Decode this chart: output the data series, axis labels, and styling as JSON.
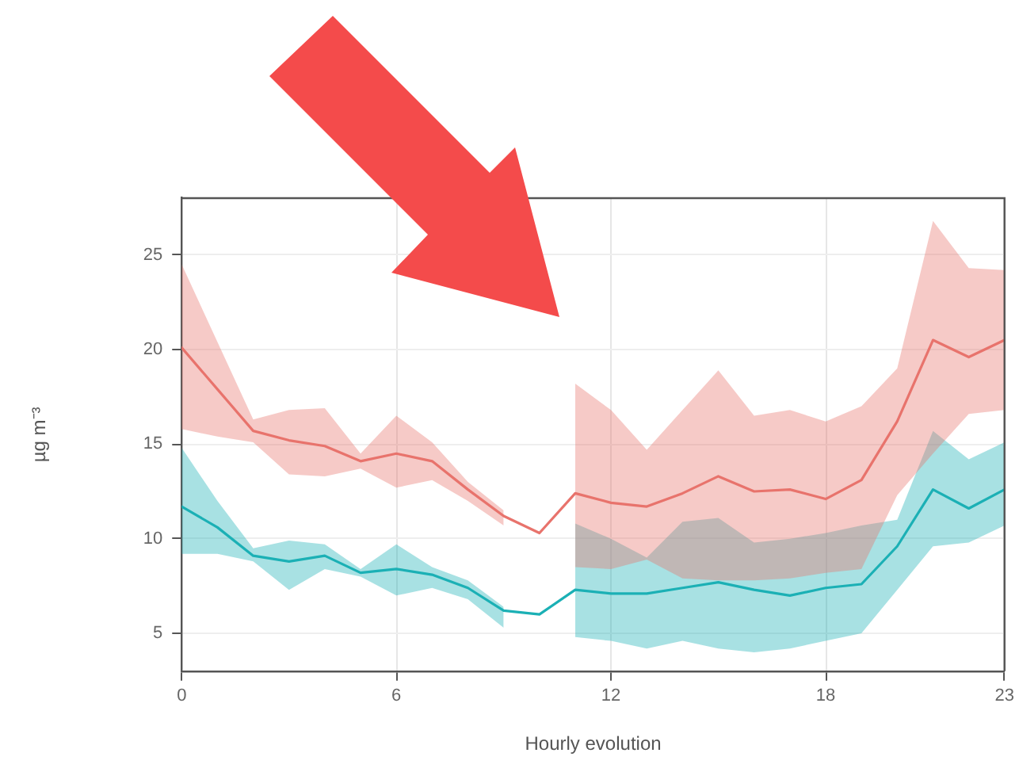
{
  "chart_data": {
    "type": "line",
    "xlabel": "Hourly evolution",
    "ylabel": "µg m⁻³",
    "x": [
      0,
      1,
      2,
      3,
      4,
      5,
      6,
      7,
      8,
      9,
      10,
      11,
      12,
      13,
      14,
      15,
      16,
      17,
      18,
      19,
      20,
      21,
      22,
      23
    ],
    "xlim": [
      0,
      23
    ],
    "xticks": [
      0,
      6,
      12,
      18,
      23
    ],
    "ylim": [
      3,
      28
    ],
    "yticks": [
      5,
      10,
      15,
      20,
      25
    ],
    "grid": true,
    "legend": false,
    "marker": "none",
    "line_style": "solid",
    "series": [
      {
        "color": "#e8736c",
        "values": [
          20.1,
          17.9,
          15.7,
          15.2,
          14.9,
          14.1,
          14.5,
          14.1,
          12.6,
          11.2,
          10.3,
          12.4,
          11.9,
          11.7,
          12.4,
          13.3,
          12.5,
          12.6,
          12.1,
          13.1,
          16.2,
          20.5,
          19.6,
          20.5
        ],
        "lower": [
          15.8,
          15.4,
          15.1,
          13.4,
          13.3,
          13.7,
          12.7,
          13.1,
          12.0,
          10.7,
          null,
          8.5,
          8.4,
          8.9,
          7.9,
          7.8,
          7.8,
          7.9,
          8.2,
          8.4,
          12.3,
          14.5,
          16.6,
          16.8
        ],
        "upper": [
          24.5,
          20.4,
          16.3,
          16.8,
          16.9,
          14.5,
          16.5,
          15.1,
          13.0,
          11.5,
          null,
          18.2,
          16.8,
          14.7,
          16.8,
          18.9,
          16.5,
          16.8,
          16.2,
          17.0,
          19.0,
          26.8,
          24.3,
          24.2
        ]
      },
      {
        "color": "#1bb0b5",
        "values": [
          11.7,
          10.6,
          9.1,
          8.8,
          9.1,
          8.2,
          8.4,
          8.1,
          7.4,
          6.2,
          6.0,
          7.3,
          7.1,
          7.1,
          7.4,
          7.7,
          7.3,
          7.0,
          7.4,
          7.6,
          9.6,
          12.6,
          11.6,
          12.6
        ],
        "lower": [
          9.2,
          9.2,
          8.8,
          7.3,
          8.4,
          8.0,
          7.0,
          7.4,
          6.8,
          5.3,
          null,
          4.8,
          4.6,
          4.2,
          4.6,
          4.2,
          4.0,
          4.2,
          4.6,
          5.0,
          7.3,
          9.6,
          9.8,
          10.7
        ],
        "upper": [
          14.8,
          12.0,
          9.5,
          9.9,
          9.7,
          8.4,
          9.7,
          8.5,
          7.8,
          6.4,
          null,
          10.8,
          10.0,
          9.0,
          10.9,
          11.1,
          9.8,
          10.0,
          10.3,
          10.7,
          11.0,
          15.7,
          14.2,
          15.1
        ]
      }
    ]
  }
}
